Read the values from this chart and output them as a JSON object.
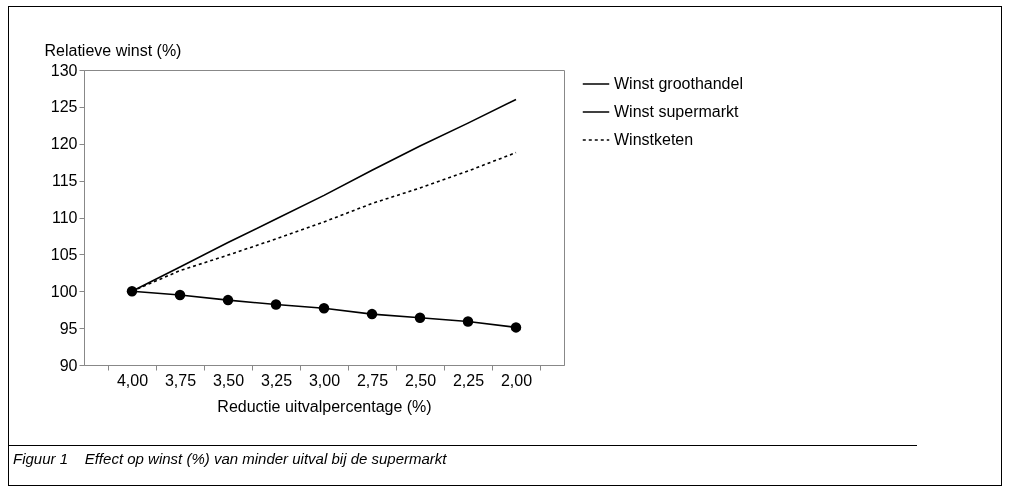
{
  "chart_data": {
    "type": "line",
    "xlabel": "Reductie uitvalpercentage (%)",
    "ylabel": "Relatieve winst (%)",
    "categories": [
      "4,00",
      "3,75",
      "3,50",
      "3,25",
      "3,00",
      "2,75",
      "2,50",
      "2,25",
      "2,00"
    ],
    "series": [
      {
        "name": "Winst groothandel",
        "color": "#000000",
        "marker": "circle",
        "line_style": "solid",
        "values": [
          100,
          99.5,
          98.8,
          98.2,
          97.7,
          96.9,
          96.4,
          95.9,
          95.1
        ]
      },
      {
        "name": "Winst supermarkt",
        "color": "#000000",
        "marker": "none",
        "line_style": "solid",
        "values": [
          100,
          103.3,
          106.6,
          109.8,
          113,
          116.4,
          119.7,
          122.8,
          126
        ]
      },
      {
        "name": "Winstketen",
        "color": "#000000",
        "marker": "none",
        "line_style": "dotted",
        "values": [
          100,
          102.8,
          104.9,
          107.1,
          109.4,
          111.9,
          114,
          116.3,
          118.8
        ]
      }
    ],
    "ylim": [
      90,
      130
    ],
    "yticks": [
      90,
      95,
      100,
      105,
      110,
      115,
      120,
      125,
      130
    ],
    "grid": false,
    "legend": "right",
    "annotations": [
      "Figuur 1    Effect op winst (%) van minder uitval bij de supermarkt"
    ]
  }
}
